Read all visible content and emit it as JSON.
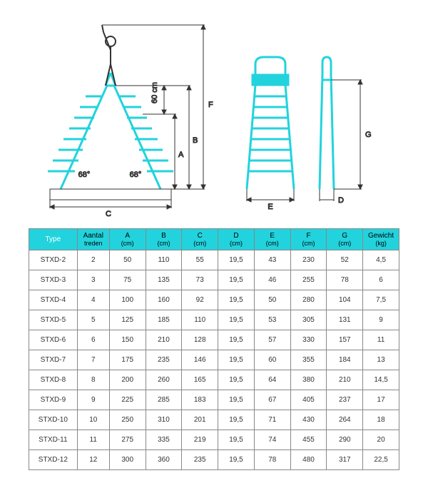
{
  "diagram": {
    "stroke_color": "#22d3dd",
    "dim_color": "#333333",
    "labels": {
      "A": "A",
      "B": "B",
      "C": "C",
      "D": "D",
      "E": "E",
      "F": "F",
      "G": "G",
      "sixty_cm": "60 cm",
      "angle_left": "68°",
      "angle_right": "68°"
    }
  },
  "table": {
    "header_bg": "#22d3dd",
    "columns": [
      {
        "label": "Type",
        "unit": ""
      },
      {
        "label": "Aantal",
        "unit": "treden"
      },
      {
        "label": "A",
        "unit": "(cm)"
      },
      {
        "label": "B",
        "unit": "(cm)"
      },
      {
        "label": "C",
        "unit": "(cm)"
      },
      {
        "label": "D",
        "unit": "(cm)"
      },
      {
        "label": "E",
        "unit": "(cm)"
      },
      {
        "label": "F",
        "unit": "(cm)"
      },
      {
        "label": "G",
        "unit": "(cm)"
      },
      {
        "label": "Gewicht",
        "unit": "(kg)"
      }
    ],
    "rows": [
      [
        "STXD-2",
        "2",
        "50",
        "110",
        "55",
        "19,5",
        "43",
        "230",
        "52",
        "4,5"
      ],
      [
        "STXD-3",
        "3",
        "75",
        "135",
        "73",
        "19,5",
        "46",
        "255",
        "78",
        "6"
      ],
      [
        "STXD-4",
        "4",
        "100",
        "160",
        "92",
        "19,5",
        "50",
        "280",
        "104",
        "7,5"
      ],
      [
        "STXD-5",
        "5",
        "125",
        "185",
        "110",
        "19,5",
        "53",
        "305",
        "131",
        "9"
      ],
      [
        "STXD-6",
        "6",
        "150",
        "210",
        "128",
        "19,5",
        "57",
        "330",
        "157",
        "11"
      ],
      [
        "STXD-7",
        "7",
        "175",
        "235",
        "146",
        "19,5",
        "60",
        "355",
        "184",
        "13"
      ],
      [
        "STXD-8",
        "8",
        "200",
        "260",
        "165",
        "19,5",
        "64",
        "380",
        "210",
        "14,5"
      ],
      [
        "STXD-9",
        "9",
        "225",
        "285",
        "183",
        "19,5",
        "67",
        "405",
        "237",
        "17"
      ],
      [
        "STXD-10",
        "10",
        "250",
        "310",
        "201",
        "19,5",
        "71",
        "430",
        "264",
        "18"
      ],
      [
        "STXD-11",
        "11",
        "275",
        "335",
        "219",
        "19,5",
        "74",
        "455",
        "290",
        "20"
      ],
      [
        "STXD-12",
        "12",
        "300",
        "360",
        "235",
        "19,5",
        "78",
        "480",
        "317",
        "22,5"
      ]
    ]
  }
}
